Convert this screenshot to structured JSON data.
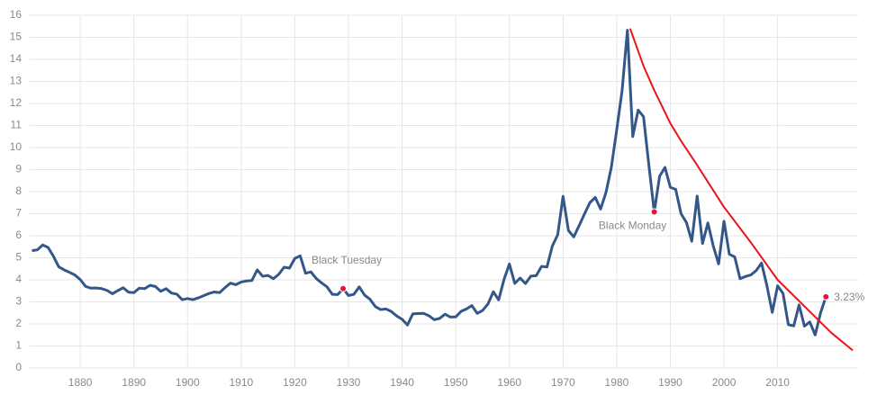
{
  "chart_data": {
    "type": "line",
    "x": [
      1871,
      1872,
      1873,
      1874,
      1875,
      1876,
      1877,
      1878,
      1879,
      1880,
      1881,
      1882,
      1883,
      1884,
      1885,
      1886,
      1887,
      1888,
      1889,
      1890,
      1891,
      1892,
      1893,
      1894,
      1895,
      1896,
      1897,
      1898,
      1899,
      1900,
      1901,
      1902,
      1903,
      1904,
      1905,
      1906,
      1907,
      1908,
      1909,
      1910,
      1911,
      1912,
      1913,
      1914,
      1915,
      1916,
      1917,
      1918,
      1919,
      1920,
      1921,
      1922,
      1923,
      1924,
      1925,
      1926,
      1927,
      1928,
      1929,
      1930,
      1931,
      1932,
      1933,
      1934,
      1935,
      1936,
      1937,
      1938,
      1939,
      1940,
      1941,
      1942,
      1943,
      1944,
      1945,
      1946,
      1947,
      1948,
      1949,
      1950,
      1951,
      1952,
      1953,
      1954,
      1955,
      1956,
      1957,
      1958,
      1959,
      1960,
      1961,
      1962,
      1963,
      1964,
      1965,
      1966,
      1967,
      1968,
      1969,
      1970,
      1971,
      1972,
      1973,
      1974,
      1975,
      1976,
      1977,
      1978,
      1979,
      1980,
      1981,
      1982,
      1983,
      1984,
      1985,
      1986,
      1987,
      1988,
      1989,
      1990,
      1991,
      1992,
      1993,
      1994,
      1995,
      1996,
      1997,
      1998,
      1999,
      2000,
      2001,
      2002,
      2003,
      2004,
      2005,
      2006,
      2007,
      2008,
      2009,
      2010,
      2011,
      2012,
      2013,
      2014,
      2015,
      2016,
      2017,
      2018,
      2019
    ],
    "series": [
      {
        "color": "#34578a",
        "values": [
          5.32,
          5.36,
          5.58,
          5.47,
          5.07,
          4.59,
          4.45,
          4.34,
          4.22,
          4.01,
          3.7,
          3.62,
          3.63,
          3.6,
          3.52,
          3.37,
          3.51,
          3.64,
          3.44,
          3.42,
          3.62,
          3.6,
          3.75,
          3.7,
          3.48,
          3.6,
          3.4,
          3.35,
          3.1,
          3.15,
          3.1,
          3.18,
          3.28,
          3.38,
          3.45,
          3.42,
          3.65,
          3.85,
          3.78,
          3.9,
          3.95,
          3.97,
          4.45,
          4.16,
          4.2,
          4.05,
          4.25,
          4.57,
          4.53,
          4.97,
          5.09,
          4.3,
          4.36,
          4.06,
          3.86,
          3.68,
          3.34,
          3.33,
          3.6,
          3.29,
          3.34,
          3.68,
          3.31,
          3.12,
          2.79,
          2.65,
          2.68,
          2.56,
          2.36,
          2.21,
          1.95,
          2.46,
          2.47,
          2.48,
          2.37,
          2.19,
          2.25,
          2.44,
          2.31,
          2.32,
          2.57,
          2.68,
          2.83,
          2.48,
          2.61,
          2.9,
          3.46,
          3.09,
          4.02,
          4.72,
          3.84,
          4.08,
          3.83,
          4.17,
          4.19,
          4.61,
          4.58,
          5.53,
          6.04,
          7.79,
          6.24,
          5.95,
          6.46,
          6.99,
          7.5,
          7.74,
          7.21,
          7.96,
          9.1,
          10.8,
          12.57,
          15.32,
          10.5,
          11.7,
          11.4,
          9.2,
          7.08,
          8.7,
          9.1,
          8.2,
          8.1,
          7.0,
          6.6,
          5.75,
          7.8,
          5.65,
          6.58,
          5.54,
          4.72,
          6.66,
          5.16,
          5.04,
          4.05,
          4.15,
          4.22,
          4.42,
          4.76,
          3.74,
          2.52,
          3.73,
          3.39,
          1.97,
          1.91,
          2.86,
          1.9,
          2.09,
          1.5,
          2.5,
          3.23
        ]
      }
    ],
    "trend": {
      "color": "#e8151b",
      "x": [
        1982.5,
        1985,
        1987,
        1990,
        1992,
        1995,
        2000,
        2005,
        2010,
        2015,
        2020,
        2024
      ],
      "values": [
        15.4,
        13.7,
        12.6,
        11.1,
        10.3,
        9.2,
        7.3,
        5.7,
        4.0,
        2.8,
        1.6,
        0.8
      ]
    },
    "annotations": [
      {
        "text": "Black Tuesday",
        "x": 1929
      },
      {
        "text": "Black Monday",
        "x": 1987
      },
      {
        "text": "3.23%",
        "x": 2019
      }
    ],
    "marker_color": "#e0173a",
    "xlim": [
      1871,
      2025
    ],
    "ylim": [
      0,
      16
    ],
    "xticks": [
      1880,
      1890,
      1900,
      1910,
      1920,
      1930,
      1940,
      1950,
      1960,
      1970,
      1980,
      1990,
      2000,
      2010
    ],
    "yticks": [
      0,
      1,
      2,
      3,
      4,
      5,
      6,
      7,
      8,
      9,
      10,
      11,
      12,
      13,
      14,
      15,
      16
    ],
    "grid": true
  }
}
